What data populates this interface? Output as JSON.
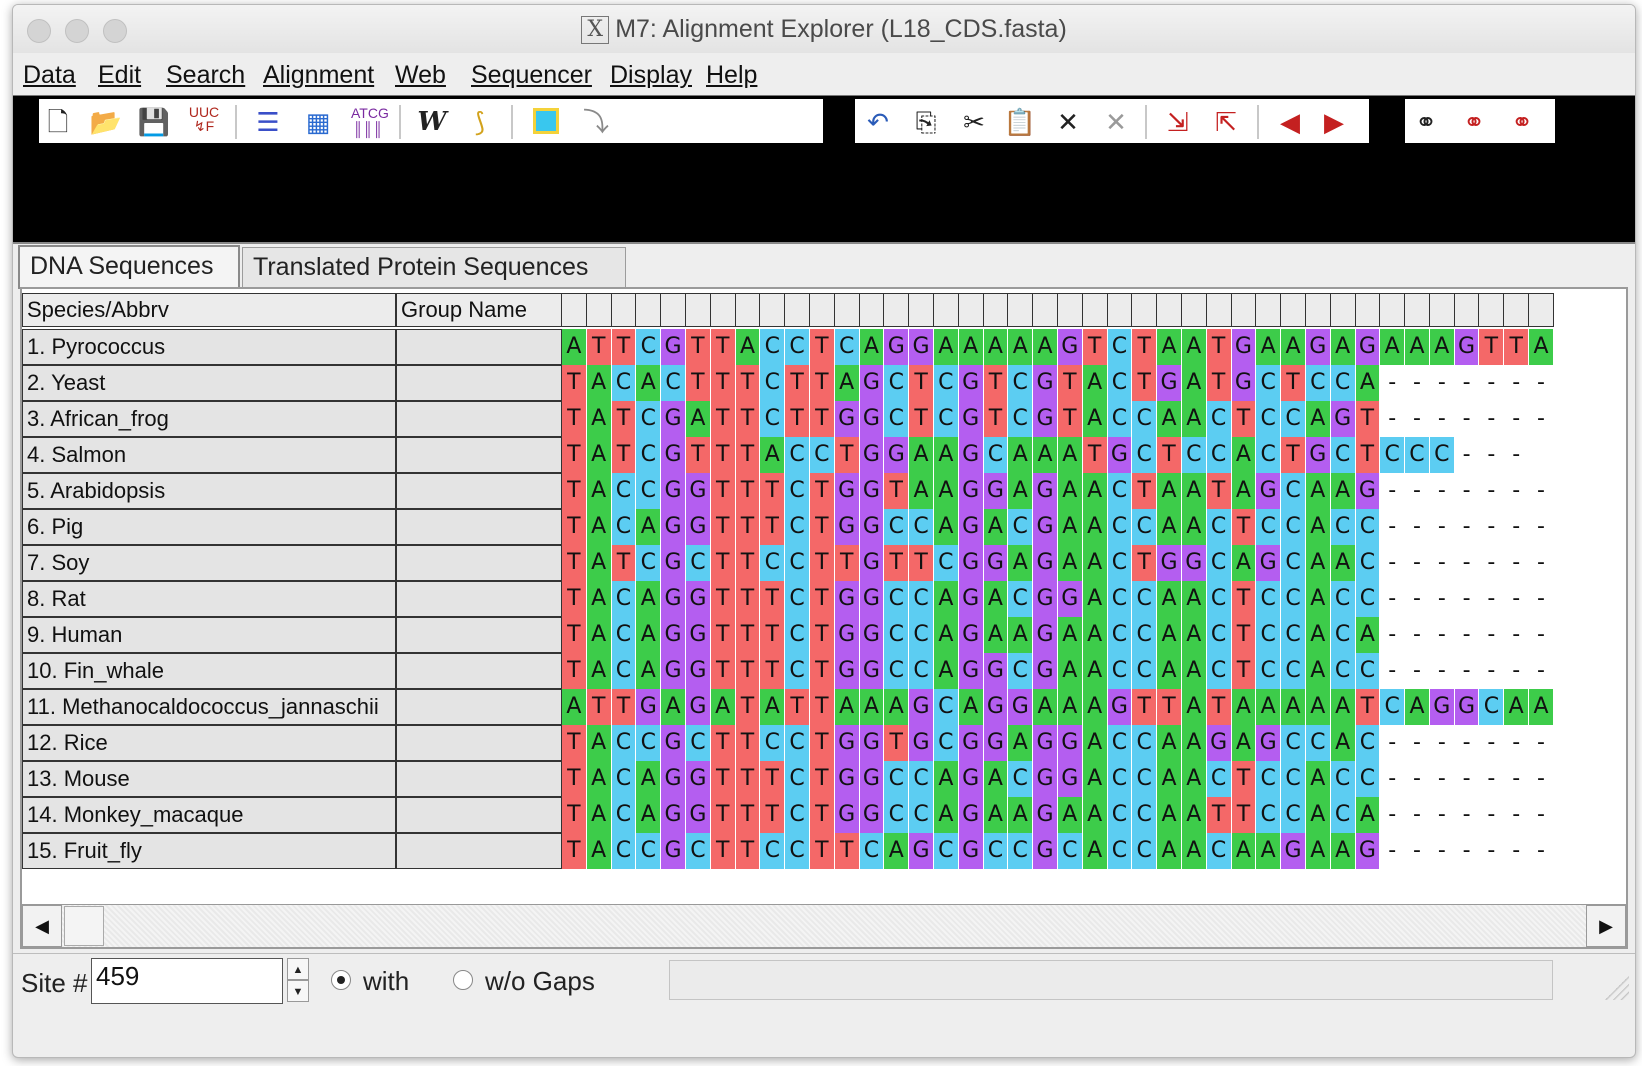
{
  "window": {
    "title": "M7: Alignment Explorer (L18_CDS.fasta)"
  },
  "menu": [
    "Data",
    "Edit",
    "Search",
    "Alignment",
    "Web",
    "Sequencer",
    "Display",
    "Help"
  ],
  "toolbar": {
    "left": [
      "new-file-icon",
      "open-folder-icon",
      "save-disk-icon",
      "genetic-code-icon",
      "align-lines-icon",
      "muscle-align-icon",
      "clustal-align-icon",
      "bold-w-icon",
      "mark-site-icon",
      "yellow-box-icon",
      "tree-branch-icon"
    ],
    "right": [
      "undo-icon",
      "copy-icon",
      "cut-icon",
      "paste-icon",
      "delete-icon",
      "delete-gap-icon",
      "insert-seq-icon",
      "add-seq-icon",
      "move-left-icon",
      "move-right-icon"
    ],
    "find": [
      "find-binoculars-icon",
      "find-prev-icon",
      "find-next-icon"
    ]
  },
  "tabs": [
    "DNA Sequences",
    "Translated Protein Sequences"
  ],
  "columns": {
    "species": "Species/Abbrv",
    "group": "Group Name"
  },
  "rows": [
    {
      "name": "1. Pyrococcus",
      "group": "",
      "seq": "ATTCGTTACCTCAGGAAAAAGTCTAATGAAGAGAAAGTTA"
    },
    {
      "name": "2. Yeast",
      "group": "",
      "seq": "TACACTTTCTTAGCTCGTCGTACTGATGCTCCA-------"
    },
    {
      "name": "3. African_frog",
      "group": "",
      "seq": "TATCGATTCTTGGCTCGTCGTACCAACTCCAGT-------"
    },
    {
      "name": "4. Salmon",
      "group": "",
      "seq": "TATCGTTTACCTGGAAGCAAATGCTCCACTGCTCCC---"
    },
    {
      "name": "5. Arabidopsis",
      "group": "",
      "seq": "TACCGGTTTCTGGTAAGGAGAACTAATAGCAAG-------"
    },
    {
      "name": "6. Pig",
      "group": "",
      "seq": "TACAGGTTTCTGGCCAGACGAACCAACTCCACC-------"
    },
    {
      "name": "7. Soy",
      "group": "",
      "seq": "TATCGCTTCCTTGTTCGGAGAACTGGCAGCAAC-------"
    },
    {
      "name": "8. Rat",
      "group": "",
      "seq": "TACAGGTTTCTGGCCAGACGGACCAACTCCACC-------"
    },
    {
      "name": "9. Human",
      "group": "",
      "seq": "TACAGGTTTCTGGCCAGAAGAACCAACTCCACA-------"
    },
    {
      "name": "10. Fin_whale",
      "group": "",
      "seq": "TACAGGTTTCTGGCCAGGCGAACCAACTCCACC-------"
    },
    {
      "name": "11. Methanocaldococcus_jannaschii",
      "group": "",
      "seq": "ATTGAGATATTAAAGCAGGAAAGTTATAAAAATCAGGCAA"
    },
    {
      "name": "12. Rice",
      "group": "",
      "seq": "TACCGCTTCCTGGTGCGGAGGACCAAGAGCCAC-------"
    },
    {
      "name": "13. Mouse",
      "group": "",
      "seq": "TACAGGTTTCTGGCCAGACGGACCAACTCCACC-------"
    },
    {
      "name": "14. Monkey_macaque",
      "group": "",
      "seq": "TACAGGTTTCTGGCCAGAAGAACCAATTCCACA-------"
    },
    {
      "name": "15. Fruit_fly",
      "group": "",
      "seq": "TACCGCTTCCTTCAGCGCCGCACCAACAAGAAG-------"
    }
  ],
  "base_colors": {
    "A": "#3dcc4a",
    "T": "#f46868",
    "C": "#5ccdf2",
    "G": "#b45ef0"
  },
  "status": {
    "site_label": "Site #",
    "site_value": "459",
    "with_label": "with",
    "without_label": "w/o Gaps",
    "selected": "with"
  }
}
